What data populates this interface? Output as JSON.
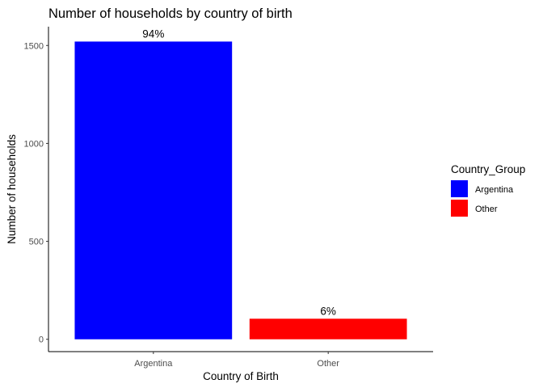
{
  "chart_data": {
    "type": "bar",
    "title": "Number of households by country of birth",
    "xlabel": "Country of Birth",
    "ylabel": "Number of households",
    "categories": [
      "Argentina",
      "Other"
    ],
    "values": [
      1520,
      105
    ],
    "data_labels": [
      "94%",
      "6%"
    ],
    "colors": [
      "#0000ff",
      "#ff0000"
    ],
    "ylim": [
      -63,
      1596
    ],
    "yticks": [
      0,
      500,
      1000,
      1500
    ],
    "grid": false,
    "legend": {
      "title": "Country_Group",
      "position": "right",
      "entries": [
        "Argentina",
        "Other"
      ]
    }
  }
}
